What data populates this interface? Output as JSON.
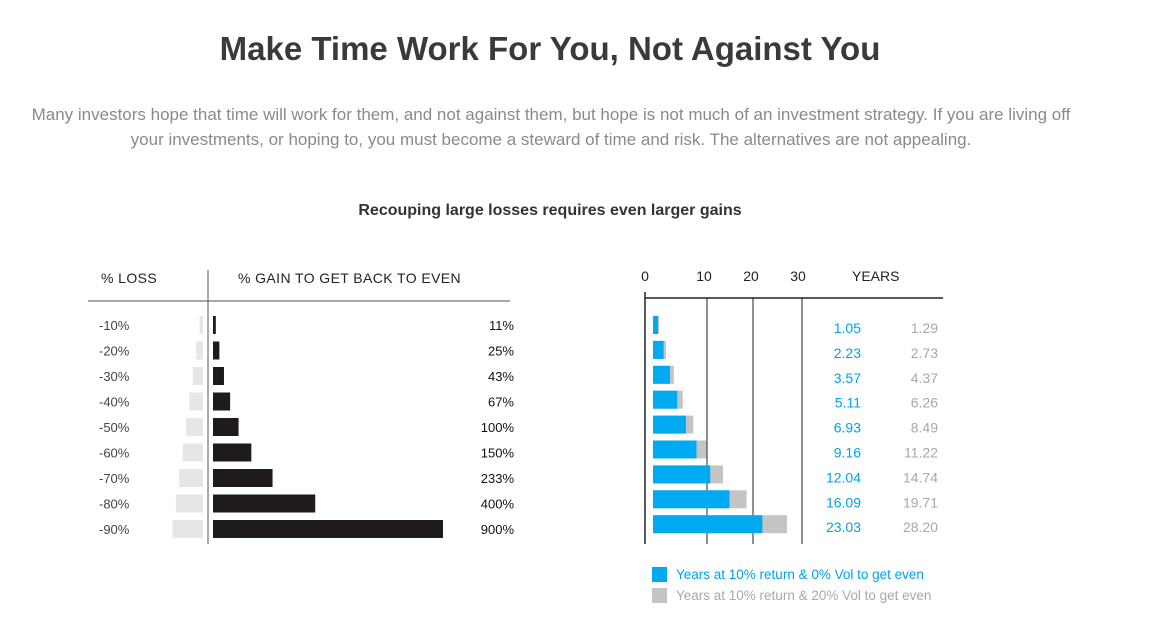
{
  "page": {
    "title": "Make Time Work For You, Not Against You",
    "intro": "Many investors hope that time will work for them, and not against them, but hope is not much of an investment strategy. If you are living off your investments, or hoping to, you must become a steward of time and risk. The alternatives are not appealing.",
    "subtitle": "Recouping large losses requires even larger gains"
  },
  "colors": {
    "loss_bar": "#e6e6e6",
    "gain_bar": "#1f1a1b",
    "years_zero_vol": "#00aaf0",
    "years_twenty_vol": "#c4c4c4",
    "text_blue": "#00a3e6",
    "text_gray": "#a8a8a8"
  },
  "chart_data": [
    {
      "type": "bar",
      "orientation": "horizontal",
      "loss_header": "% LOSS",
      "gain_header": "% GAIN TO GET BACK TO EVEN",
      "categories": [
        "-10%",
        "-20%",
        "-30%",
        "-40%",
        "-50%",
        "-60%",
        "-70%",
        "-80%",
        "-90%"
      ],
      "loss_values": [
        10,
        20,
        30,
        40,
        50,
        60,
        70,
        80,
        90
      ],
      "gain_values": [
        11,
        25,
        43,
        67,
        100,
        150,
        233,
        400,
        900
      ],
      "gain_labels": [
        "11%",
        "25%",
        "43%",
        "67%",
        "100%",
        "150%",
        "233%",
        "400%",
        "900%"
      ]
    },
    {
      "type": "bar",
      "orientation": "horizontal",
      "xlabel": "YEARS",
      "xticks": [
        "0",
        "10",
        "20",
        "30"
      ],
      "xlim": [
        0,
        30
      ],
      "series": [
        {
          "name": "Years at 10% return & 0% Vol to get even",
          "values": [
            1.05,
            2.23,
            3.57,
            5.11,
            6.93,
            9.16,
            12.04,
            16.09,
            23.03
          ],
          "labels": [
            "1.05",
            "2.23",
            "3.57",
            "5.11",
            "6.93",
            "9.16",
            "12.04",
            "16.09",
            "23.03"
          ]
        },
        {
          "name": "Years at 10% return & 20% Vol to get even",
          "values": [
            1.29,
            2.73,
            4.37,
            6.26,
            8.49,
            11.22,
            14.74,
            19.71,
            28.2
          ],
          "labels": [
            "1.29",
            "2.73",
            "4.37",
            "6.26",
            "8.49",
            "11.22",
            "14.74",
            "19.71",
            "28.20"
          ]
        }
      ]
    }
  ]
}
